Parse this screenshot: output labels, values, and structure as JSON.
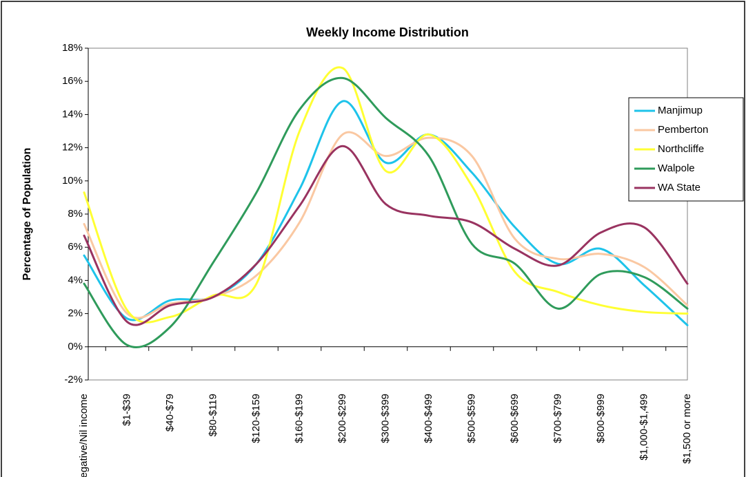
{
  "chart_data": {
    "type": "line",
    "title": "Weekly Income Distribution",
    "y_label": "Percentage of Population",
    "categories": [
      "Negative/Nil income",
      "$1-$39",
      "$40-$79",
      "$80-$119",
      "$120-$159",
      "$160-$199",
      "$200-$299",
      "$300-$399",
      "$400-$499",
      "$500-$599",
      "$600-$699",
      "$700-$799",
      "$800-$999",
      "$1,000-$1,499",
      "$1,500 or more"
    ],
    "series": [
      {
        "name": "Manjimup",
        "color": "#1ec3ea",
        "values": [
          5.5,
          1.7,
          2.8,
          3.0,
          5.0,
          9.5,
          14.8,
          11.1,
          12.8,
          10.5,
          7.2,
          5.0,
          5.9,
          3.7,
          1.3
        ]
      },
      {
        "name": "Pemberton",
        "color": "#fac8a2",
        "values": [
          7.4,
          2.0,
          2.6,
          3.0,
          4.3,
          7.5,
          12.8,
          11.5,
          12.6,
          11.5,
          6.5,
          5.3,
          5.6,
          4.8,
          2.5
        ]
      },
      {
        "name": "Northcliffe",
        "color": "#ffff33",
        "values": [
          9.3,
          2.2,
          1.8,
          3.1,
          3.8,
          13.0,
          16.8,
          10.6,
          12.8,
          9.7,
          4.5,
          3.3,
          2.5,
          2.1,
          2.0
        ]
      },
      {
        "name": "Walpole",
        "color": "#2f9b5b",
        "values": [
          3.8,
          0.1,
          1.2,
          5.1,
          9.3,
          14.3,
          16.2,
          13.8,
          11.5,
          6.2,
          5.0,
          2.3,
          4.4,
          4.2,
          2.3
        ]
      },
      {
        "name": "WA State",
        "color": "#993360",
        "values": [
          6.7,
          1.5,
          2.5,
          3.0,
          5.0,
          8.5,
          12.1,
          8.6,
          7.9,
          7.5,
          5.9,
          4.9,
          6.9,
          7.2,
          3.8
        ]
      }
    ],
    "ylim": [
      -2,
      18
    ],
    "yticks": [
      {
        "value": -2,
        "label": "-2%"
      },
      {
        "value": 0,
        "label": "0%"
      },
      {
        "value": 2,
        "label": "2%"
      },
      {
        "value": 4,
        "label": "4%"
      },
      {
        "value": 6,
        "label": "6%"
      },
      {
        "value": 8,
        "label": "8%"
      },
      {
        "value": 10,
        "label": "10%"
      },
      {
        "value": 12,
        "label": "12%"
      },
      {
        "value": 14,
        "label": "14%"
      },
      {
        "value": 16,
        "label": "16%"
      },
      {
        "value": 18,
        "label": "18%"
      }
    ],
    "grid": false,
    "legend": "right"
  }
}
